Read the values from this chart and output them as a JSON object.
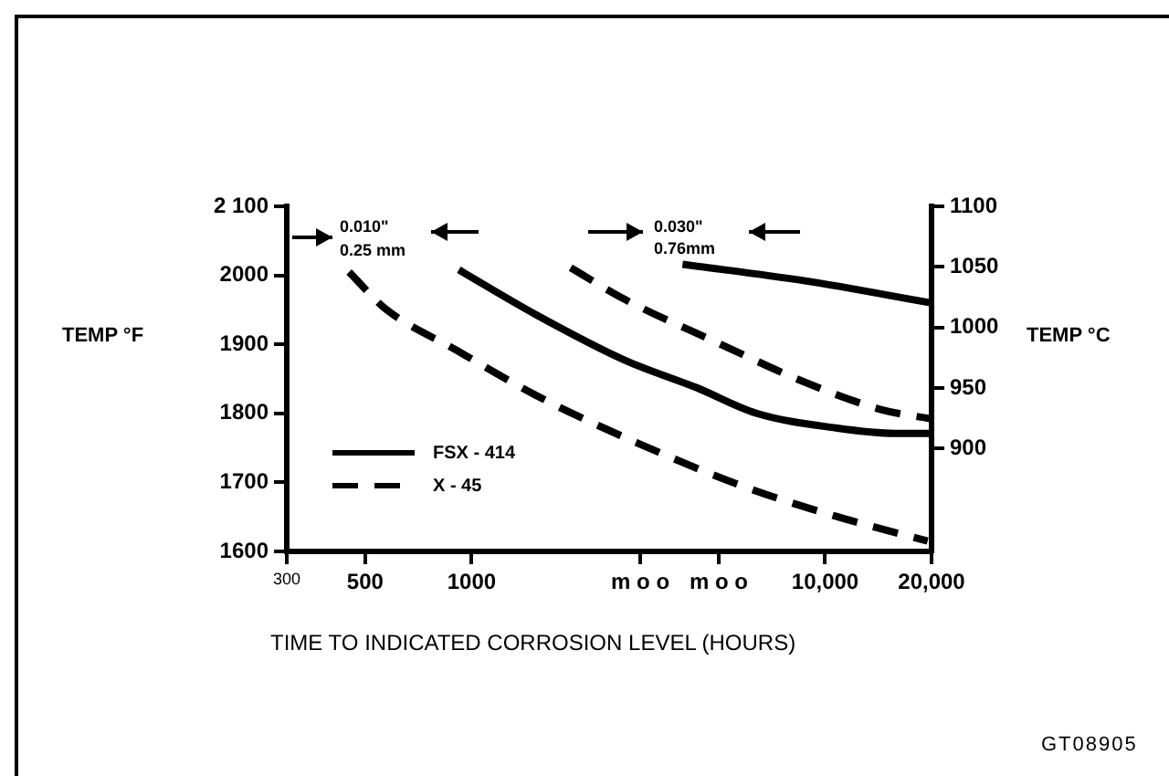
{
  "chart_data": {
    "type": "line",
    "xlabel": "TIME TO INDICATED CORROSION LEVEL (HOURS)",
    "ylabel": "TEMP °F",
    "y2label": "TEMP °C",
    "log": "x",
    "xlim": [
      300,
      20000
    ],
    "xticks": [
      300,
      500,
      1000,
      {
        "value": 3000,
        "label": "m o o"
      },
      {
        "value": 5000,
        "label": "m o o"
      },
      {
        "value": 10000,
        "label": "10,000"
      },
      {
        "value": 20000,
        "label": "20,000"
      }
    ],
    "ylim": [
      1600,
      2100
    ],
    "yticks": [
      1600,
      1700,
      1800,
      1900,
      2000,
      {
        "value": 2100,
        "label": "2 100"
      }
    ],
    "y2lim": [
      815,
      1100
    ],
    "y2ticks": [
      900,
      950,
      1000,
      1050,
      1100
    ],
    "grid": false,
    "legend": "bottom left",
    "marker": "none",
    "annotations": [
      "0.010\"",
      "0.25 mm",
      "0.030\"",
      "0.76mm",
      "GT08905"
    ],
    "series": [
      {
        "name": "FSX - 414",
        "color": "#000000",
        "line_style": "solid",
        "x": [
          920,
          1509,
          2715,
          4340,
          6400,
          10700,
          15800,
          20000
        ],
        "values": [
          2008,
          1944,
          1877,
          1837,
          1800,
          1779,
          1771,
          1771
        ]
      },
      {
        "name": "X - 45",
        "color": "#000000",
        "line_style": "dashed",
        "x": [
          450,
          569,
          910,
          1509,
          2947,
          5960,
          10700,
          19500
        ],
        "values": [
          2005,
          1952,
          1891,
          1827,
          1757,
          1693,
          1651,
          1615
        ]
      },
      {
        "color": "#000000",
        "line_style": "solid",
        "x": [
          3950,
          8780,
          20000
        ],
        "values": [
          2016,
          1992,
          1960
        ]
      },
      {
        "color": "#000000",
        "line_style": "dashed",
        "x": [
          1906,
          2715,
          4880,
          8780,
          14550,
          20000
        ],
        "values": [
          2011,
          1965,
          1904,
          1845,
          1805,
          1792
        ]
      }
    ]
  }
}
